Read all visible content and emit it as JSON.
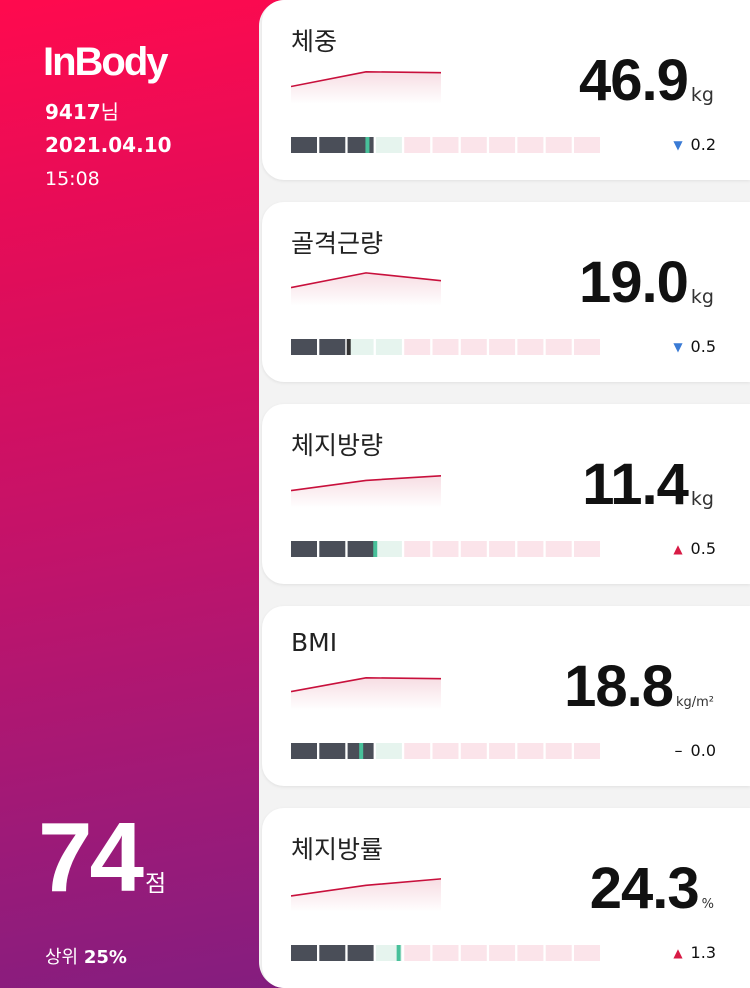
{
  "app": {
    "logo": "InBody"
  },
  "user": {
    "id": "9417",
    "suffix": "님"
  },
  "date": "2021.04.10",
  "time": "15:08",
  "score": {
    "value": "74",
    "unit": "점",
    "rank_label": "상위",
    "rank_value": "25%"
  },
  "metrics": [
    {
      "title": "체중",
      "value": "46.9",
      "unit": "kg",
      "change": "0.2",
      "direction": "down",
      "direction_symbol": "▼",
      "marker_fraction": 0.245,
      "marker_color": "#48c09a",
      "filled_segments": 3,
      "trend": [
        0.62,
        0.3,
        0.32
      ]
    },
    {
      "title": "골격근량",
      "value": "19.0",
      "unit": "kg",
      "change": "0.5",
      "direction": "down",
      "direction_symbol": "▼",
      "marker_fraction": 0.185,
      "marker_color": "#333333",
      "filled_segments": 2,
      "trend": [
        0.6,
        0.28,
        0.45
      ]
    },
    {
      "title": "체지방량",
      "value": "11.4",
      "unit": "kg",
      "change": "0.5",
      "direction": "up",
      "direction_symbol": "▲",
      "marker_fraction": 0.27,
      "marker_color": "#48c09a",
      "filled_segments": 3,
      "trend": [
        0.62,
        0.4,
        0.3
      ]
    },
    {
      "title": "BMI",
      "value": "18.8",
      "unit": "kg/m²",
      "change": "0.0",
      "direction": "flat",
      "direction_symbol": "–",
      "marker_fraction": 0.225,
      "marker_color": "#48c09a",
      "filled_segments": 3,
      "trend": [
        0.6,
        0.3,
        0.32
      ]
    },
    {
      "title": "체지방률",
      "value": "24.3",
      "unit": "%",
      "change": "1.3",
      "direction": "up",
      "direction_symbol": "▲",
      "marker_fraction": 0.345,
      "marker_color": "#48c09a",
      "filled_segments": 3,
      "trend": [
        0.65,
        0.42,
        0.28
      ]
    }
  ],
  "colors": {
    "bar_dark": "#4a4e58",
    "bar_normal": "#e6f4ee",
    "bar_high": "#fbe4ea",
    "trend_line": "#c8103c",
    "trend_fill": "#f7dde3"
  }
}
